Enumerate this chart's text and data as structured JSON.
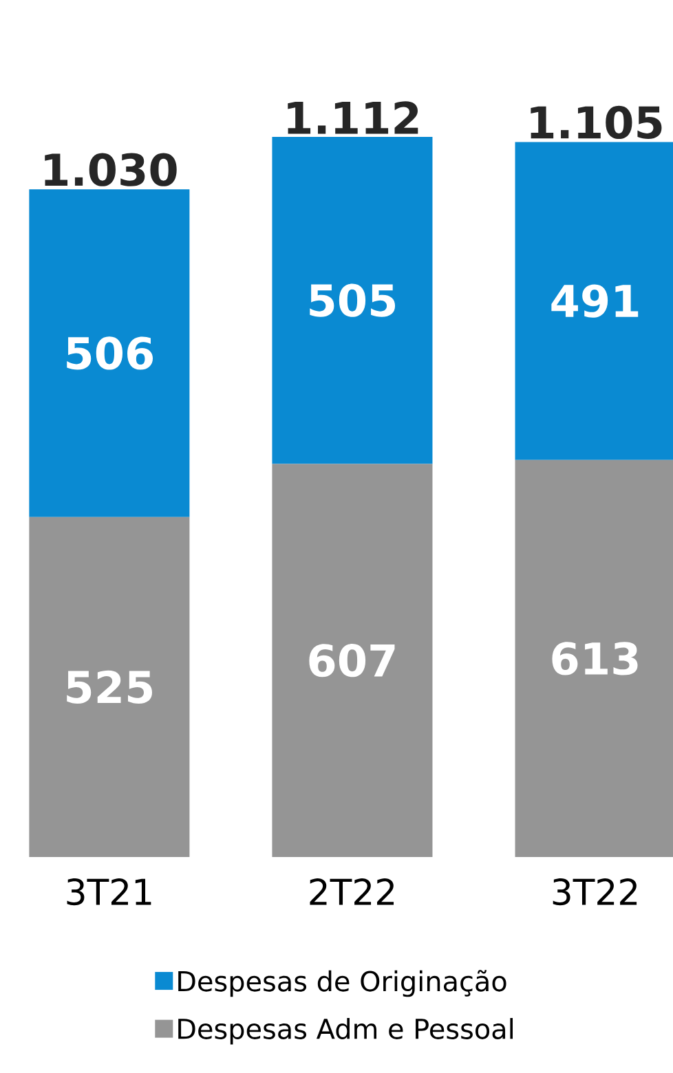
{
  "chart_data": {
    "type": "bar",
    "stacked": true,
    "categories": [
      "3T21",
      "2T22",
      "3T22"
    ],
    "series": [
      {
        "name": "Despesas Adm e Pessoal",
        "color": "#959595",
        "values": [
          525,
          607,
          613
        ]
      },
      {
        "name": "Despesas de Originação",
        "color": "#0a8ad2",
        "values": [
          506,
          505,
          491
        ]
      }
    ],
    "data_labels": true,
    "totals": [
      "1.030",
      "1.112",
      "1.105"
    ],
    "legend": "bottom"
  }
}
